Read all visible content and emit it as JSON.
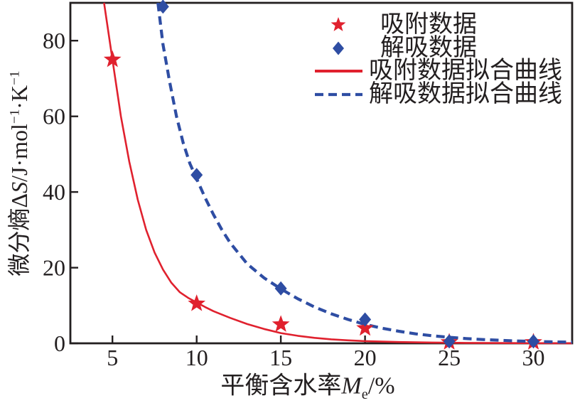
{
  "figure": {
    "background": "#ffffff"
  },
  "colors": {
    "adsorption": "#e0212e",
    "desorption": "#2e4da3",
    "axis": "#231f20"
  },
  "axes": {
    "ylabel": {
      "prefix": "微分熵Δ",
      "symbol": "S",
      "unit_a": "/J·mol",
      "sup_a": "−1",
      "unit_b": "·K",
      "sup_b": "−1"
    },
    "xlabel": {
      "prefix": "平衡含水率",
      "symbol": "M",
      "subscript": "e",
      "suffix": "/%"
    }
  },
  "legend": {
    "items": [
      {
        "label": "吸附数据",
        "marker": "star"
      },
      {
        "label": "解吸数据",
        "marker": "diamond"
      },
      {
        "label": "吸附数据拟合曲线",
        "marker": "line-solid"
      },
      {
        "label": "解吸数据拟合曲线",
        "marker": "line-dashed"
      }
    ]
  },
  "chart_data": {
    "type": "scatter",
    "title": "",
    "xlabel": "平衡含水率Mₑ/%",
    "ylabel": "微分熵ΔS/J·mol⁻¹·K⁻¹",
    "xlim": [
      2.5,
      32.3
    ],
    "ylim": [
      0,
      90
    ],
    "xticks": [
      5,
      10,
      15,
      20,
      25,
      30
    ],
    "yticks": [
      0,
      20,
      40,
      60,
      80
    ],
    "grid": false,
    "legend_position": "upper right inside",
    "series": [
      {
        "name": "吸附数据",
        "kind": "scatter",
        "marker": "star",
        "color": "#e0212e",
        "points": [
          [
            5,
            75
          ],
          [
            10,
            10.5
          ],
          [
            15,
            5
          ],
          [
            20,
            4
          ],
          [
            25,
            0.3
          ],
          [
            30,
            0.3
          ]
        ]
      },
      {
        "name": "解吸数据",
        "kind": "scatter",
        "marker": "diamond",
        "color": "#2e4da3",
        "points": [
          [
            8,
            89
          ],
          [
            10,
            44.5
          ],
          [
            15,
            14.5
          ],
          [
            20,
            6.3
          ],
          [
            25,
            0.5
          ],
          [
            30,
            0.5
          ]
        ]
      },
      {
        "name": "吸附数据拟合曲线",
        "kind": "line",
        "style": "solid",
        "color": "#e0212e",
        "points": [
          [
            4.5,
            90
          ],
          [
            5,
            75
          ],
          [
            5.5,
            60
          ],
          [
            6,
            48
          ],
          [
            6.5,
            38
          ],
          [
            7,
            30
          ],
          [
            7.5,
            24
          ],
          [
            8,
            19.5
          ],
          [
            8.5,
            16
          ],
          [
            9,
            13.5
          ],
          [
            9.5,
            12
          ],
          [
            10,
            10.8
          ],
          [
            10.5,
            9.6
          ],
          [
            11,
            8.5
          ],
          [
            11.5,
            7.6
          ],
          [
            12,
            6.7
          ],
          [
            13,
            5.1
          ],
          [
            14,
            3.8
          ],
          [
            15,
            2.7
          ],
          [
            16,
            2
          ],
          [
            17,
            1.45
          ],
          [
            18,
            1.05
          ],
          [
            19,
            0.78
          ],
          [
            20,
            0.58
          ],
          [
            21,
            0.45
          ],
          [
            22,
            0.34
          ],
          [
            24,
            0.2
          ],
          [
            26,
            0.12
          ],
          [
            28,
            0.07
          ],
          [
            30,
            0.04
          ],
          [
            32.3,
            0.02
          ]
        ]
      },
      {
        "name": "解吸数据拟合曲线",
        "kind": "line",
        "style": "dashed",
        "color": "#2e4da3",
        "points": [
          [
            7.7,
            90
          ],
          [
            8,
            79
          ],
          [
            8.4,
            69
          ],
          [
            8.8,
            60
          ],
          [
            9.2,
            53
          ],
          [
            9.6,
            47.5
          ],
          [
            10,
            43.5
          ],
          [
            10.5,
            38.5
          ],
          [
            11,
            34
          ],
          [
            11.5,
            30
          ],
          [
            12,
            26.5
          ],
          [
            13,
            21
          ],
          [
            14,
            17.3
          ],
          [
            15,
            14.4
          ],
          [
            16,
            11.8
          ],
          [
            17,
            9.6
          ],
          [
            18,
            7.8
          ],
          [
            19,
            6.3
          ],
          [
            20,
            5
          ],
          [
            21,
            4
          ],
          [
            22,
            3.2
          ],
          [
            23,
            2.5
          ],
          [
            24,
            2
          ],
          [
            25,
            1.6
          ],
          [
            26,
            1.25
          ],
          [
            27,
            1
          ],
          [
            28,
            0.8
          ],
          [
            29,
            0.62
          ],
          [
            30,
            0.5
          ],
          [
            31,
            0.4
          ],
          [
            32.3,
            0.3
          ]
        ]
      }
    ]
  }
}
